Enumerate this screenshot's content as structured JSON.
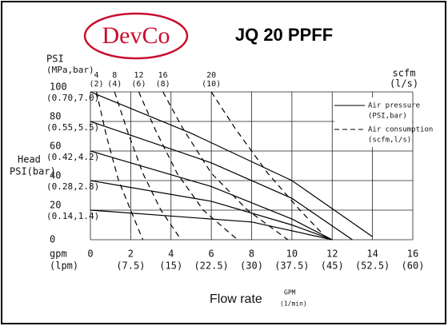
{
  "logo": "DevCo",
  "chart_data": {
    "type": "line",
    "title": "JQ 20 PPFF",
    "y_label_top": [
      "PSI",
      "(MPa,bar)"
    ],
    "y_label_side": [
      "Head",
      "PSI(bar)"
    ],
    "x_label_left": [
      "gpm",
      "(lpm)"
    ],
    "x_label": "Flow rate",
    "x_label_unit": [
      "GPM",
      "(1/min)"
    ],
    "x2_label": [
      "scfm",
      "(l/s)"
    ],
    "xlim": [
      0,
      16
    ],
    "ylim": [
      0,
      100
    ],
    "xticks": [
      0,
      2,
      4,
      6,
      8,
      10,
      12,
      14,
      16
    ],
    "xtick_sublabels": [
      null,
      "(7.5)",
      "(15)",
      "(22.5)",
      "(30)",
      "(37.5)",
      "(45)",
      "(52.5)",
      "(60)"
    ],
    "yticks": [
      0,
      20,
      40,
      60,
      80,
      100
    ],
    "ytick_sublabels": [
      null,
      "(0.14,1.4)",
      "(0.28,2.8)",
      "(0.42,4.2)",
      "(0.55,5.5)",
      "(0.70,7.0)"
    ],
    "grid": true,
    "legend": [
      {
        "lines": [
          "Air pressure",
          "(PSI,bar)"
        ],
        "dash": false
      },
      {
        "lines": [
          "Air consumption",
          "(scfm,l/s)"
        ],
        "dash": true
      }
    ],
    "pressure_series": [
      {
        "color": "#000000",
        "x": [
          0,
          5,
          10,
          14
        ],
        "y": [
          100,
          72,
          40,
          2
        ]
      },
      {
        "color": "#000000",
        "x": [
          0,
          6,
          10,
          13
        ],
        "y": [
          80,
          52,
          28,
          0
        ]
      },
      {
        "color": "#000000",
        "x": [
          0,
          6,
          10,
          12
        ],
        "y": [
          60,
          36,
          14,
          0
        ]
      },
      {
        "color": "#000000",
        "x": [
          0,
          6,
          10,
          12
        ],
        "y": [
          40,
          26,
          10,
          0
        ]
      },
      {
        "color": "#000000",
        "x": [
          0,
          8,
          12
        ],
        "y": [
          20,
          12,
          0
        ]
      }
    ],
    "consumption_series": [
      {
        "name": "4",
        "sub": "(2)",
        "color": "#000000",
        "x": [
          0.3,
          0.8,
          1.4,
          2,
          2.6
        ],
        "y": [
          100,
          70,
          40,
          20,
          0
        ]
      },
      {
        "name": "8",
        "sub": "(4)",
        "color": "#000000",
        "x": [
          1.2,
          1.8,
          2.6,
          3.5,
          4.5
        ],
        "y": [
          100,
          75,
          45,
          20,
          0
        ]
      },
      {
        "name": "12",
        "sub": "(6)",
        "color": "#000000",
        "x": [
          2.4,
          3.2,
          4.3,
          5.6,
          7.3
        ],
        "y": [
          100,
          75,
          45,
          20,
          0
        ]
      },
      {
        "name": "16",
        "sub": "(8)",
        "color": "#000000",
        "x": [
          3.6,
          4.6,
          6,
          7.8,
          9.8
        ],
        "y": [
          100,
          75,
          45,
          20,
          0
        ]
      },
      {
        "name": "20",
        "sub": "(10)",
        "color": "#000000",
        "x": [
          6,
          7.2,
          8.8,
          10.4,
          11.8
        ],
        "y": [
          100,
          75,
          45,
          20,
          0
        ]
      }
    ]
  }
}
